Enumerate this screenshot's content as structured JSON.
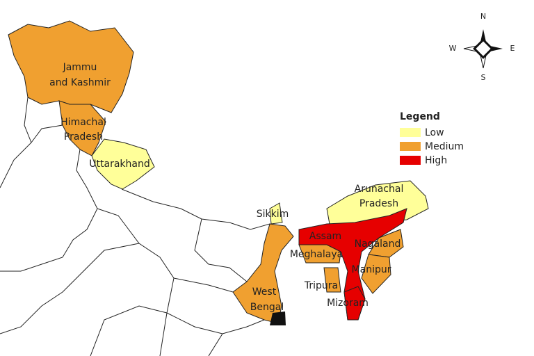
{
  "map": {
    "compass": {
      "north": "N",
      "south": "S",
      "east": "E",
      "west": "W"
    },
    "legend": {
      "title": "Legend",
      "entries": [
        {
          "name": "Low",
          "color": "#ffff99"
        },
        {
          "name": "Medium",
          "color": "#f0a030"
        },
        {
          "name": "High",
          "color": "#e60000"
        }
      ]
    },
    "regions": [
      {
        "label": [
          "Jammu",
          "and Kashmir"
        ],
        "color": "#f0a030"
      },
      {
        "label": [
          "Himachal",
          "Pradesh"
        ],
        "color": "#f0a030"
      },
      {
        "label": [
          "Uttarakhand"
        ],
        "color": "#ffff99"
      },
      {
        "label": [
          "Sikkim"
        ],
        "color": "#ffff99"
      },
      {
        "label": [
          "West",
          "Bengal"
        ],
        "color": "#f0a030"
      },
      {
        "label": [
          "Arunachal",
          "Pradesh"
        ],
        "color": "#ffff99"
      },
      {
        "label": [
          "Assam"
        ],
        "color": "#e60000"
      },
      {
        "label": [
          "Meghalaya"
        ],
        "color": "#f0a030"
      },
      {
        "label": [
          "Nagaland"
        ],
        "color": "#f0a030"
      },
      {
        "label": [
          "Manipur"
        ],
        "color": "#f0a030"
      },
      {
        "label": [
          "Tripura"
        ],
        "color": "#f0a030"
      },
      {
        "label": [
          "Mizoram"
        ],
        "color": "#e60000"
      }
    ]
  }
}
